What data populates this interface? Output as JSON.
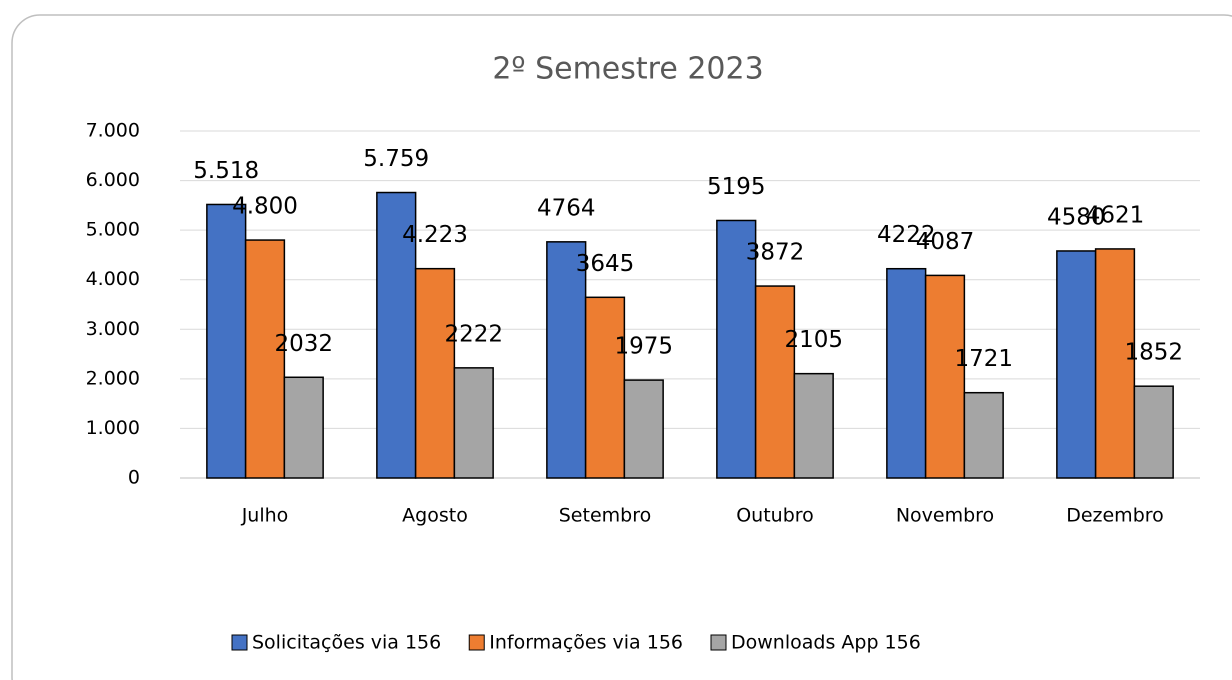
{
  "chart_data": {
    "type": "bar",
    "title": "2º Semestre 2023",
    "categories": [
      "Julho",
      "Agosto",
      "Setembro",
      "Outubro",
      "Novembro",
      "Dezembro"
    ],
    "series": [
      {
        "name": "Solicitações via 156",
        "color": "#4472c4",
        "values": [
          5518,
          5759,
          4764,
          5195,
          4222,
          4580
        ],
        "value_labels": [
          "5.518",
          "5.759",
          "4764",
          "5195",
          "4222",
          "4580"
        ]
      },
      {
        "name": "Informações via 156",
        "color": "#ed7d31",
        "values": [
          4800,
          4223,
          3645,
          3872,
          4087,
          4621
        ],
        "value_labels": [
          "4.800",
          "4.223",
          "3645",
          "3872",
          "4087",
          "4621"
        ]
      },
      {
        "name": "Downloads App 156",
        "color": "#a5a5a5",
        "values": [
          2032,
          2222,
          1975,
          2105,
          1721,
          1852
        ]
      }
    ],
    "ylim": [
      0,
      7000
    ],
    "yticks": [
      0,
      {
        "value": 1000,
        "label": "1.000"
      },
      {
        "value": 2000,
        "label": "2.000"
      },
      {
        "value": 3000,
        "label": "3.000"
      },
      {
        "value": 4000,
        "label": "4.000"
      },
      {
        "value": 5000,
        "label": "5.000"
      },
      {
        "value": 6000,
        "label": "6.000"
      },
      {
        "value": 7000,
        "label": "7.000"
      }
    ],
    "grid": true,
    "legend": "bottom"
  }
}
